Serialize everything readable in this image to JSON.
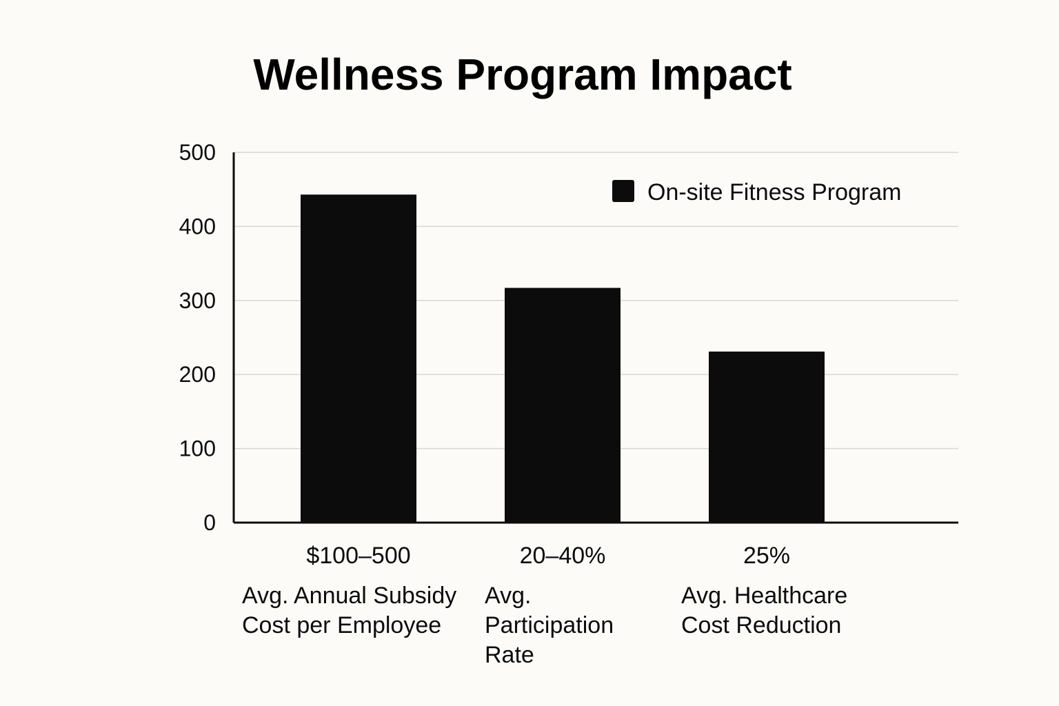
{
  "chart_data": {
    "type": "bar",
    "title": "Wellness Program Impact",
    "xlabel": "",
    "ylabel": "",
    "ylim": [
      0,
      500
    ],
    "yticks": [
      0,
      100,
      200,
      300,
      400,
      500
    ],
    "grid": true,
    "legend_position": "top-right",
    "series": [
      {
        "name": "On-site Fitness Program",
        "values": [
          443,
          317,
          231
        ]
      }
    ],
    "categories": [
      {
        "value_label": "$100–500",
        "lines": [
          "Avg. Annual Subsidy",
          "Cost per Employee"
        ]
      },
      {
        "value_label": "20–40%",
        "lines": [
          "Avg.",
          "Participation",
          "Rate"
        ]
      },
      {
        "value_label": "25%",
        "lines": [
          "Avg. Healthcare",
          "Cost Reduction"
        ]
      }
    ],
    "colors": {
      "bar": "#0c0c0c",
      "grid": "#d6d6d2",
      "axis": "#0c0c0c",
      "text": "#0c0c0c"
    }
  }
}
